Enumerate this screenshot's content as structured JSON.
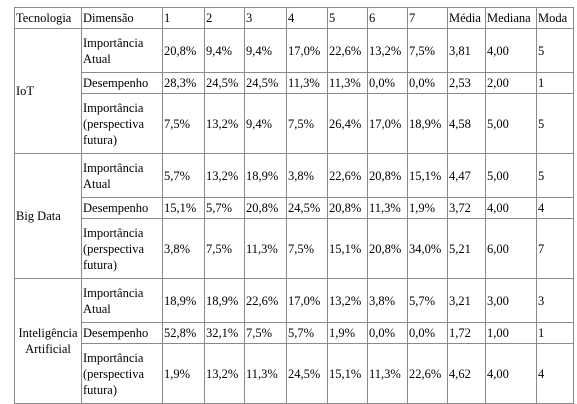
{
  "headers": [
    "Tecnologia",
    "Dimensão",
    "1",
    "2",
    "3",
    "4",
    "5",
    "6",
    "7",
    "Média",
    "Mediana",
    "Moda"
  ],
  "groups": [
    {
      "tech": "IoT",
      "rows": [
        {
          "dim": "Importância Atual",
          "v": [
            "20,8%",
            "9,4%",
            "9,4%",
            "17,0%",
            "22,6%",
            "13,2%",
            "7,5%",
            "3,81",
            "4,00",
            "5"
          ]
        },
        {
          "dim": "Desempenho",
          "v": [
            "28,3%",
            "24,5%",
            "24,5%",
            "11,3%",
            "11,3%",
            "0,0%",
            "0,0%",
            "2,53",
            "2,00",
            "1"
          ]
        },
        {
          "dim": "Importância (perspectiva futura)",
          "v": [
            "7,5%",
            "13,2%",
            "9,4%",
            "7,5%",
            "26,4%",
            "17,0%",
            "18,9%",
            "4,58",
            "5,00",
            "5"
          ]
        }
      ]
    },
    {
      "tech": "Big Data",
      "rows": [
        {
          "dim": "Importância Atual",
          "v": [
            "5,7%",
            "13,2%",
            "18,9%",
            "3,8%",
            "22,6%",
            "20,8%",
            "15,1%",
            "4,47",
            "5,00",
            "5"
          ]
        },
        {
          "dim": "Desempenho",
          "v": [
            "15,1%",
            "5,7%",
            "20,8%",
            "24,5%",
            "20,8%",
            "11,3%",
            "1,9%",
            "3,72",
            "4,00",
            "4"
          ]
        },
        {
          "dim": "Importância (perspectiva futura)",
          "v": [
            "3,8%",
            "7,5%",
            "11,3%",
            "7,5%",
            "15,1%",
            "20,8%",
            "34,0%",
            "5,21",
            "6,00",
            "7"
          ]
        }
      ]
    },
    {
      "tech": "Inteligência Artificial",
      "rows": [
        {
          "dim": "Importância Atual",
          "v": [
            "18,9%",
            "18,9%",
            "22,6%",
            "17,0%",
            "13,2%",
            "3,8%",
            "5,7%",
            "3,21",
            "3,00",
            "3"
          ]
        },
        {
          "dim": "Desempenho",
          "v": [
            "52,8%",
            "32,1%",
            "7,5%",
            "5,7%",
            "1,9%",
            "0,0%",
            "0,0%",
            "1,72",
            "1,00",
            "1"
          ]
        },
        {
          "dim": "Importância (perspectiva futura)",
          "v": [
            "1,9%",
            "13,2%",
            "11,3%",
            "24,5%",
            "15,1%",
            "11,3%",
            "22,6%",
            "4,62",
            "4,00",
            "4"
          ]
        }
      ]
    }
  ]
}
